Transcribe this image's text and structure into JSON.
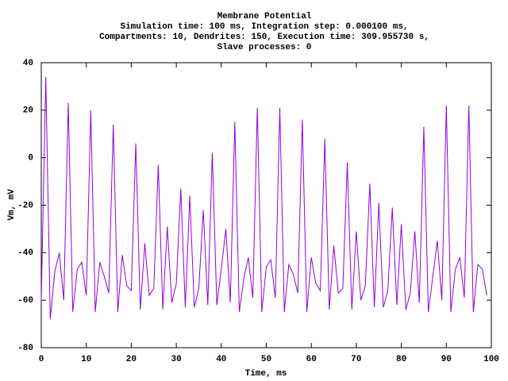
{
  "chart_data": {
    "type": "line",
    "title": "Membrane Potential",
    "subtitle": [
      "Simulation time: 100 ms, Integration step: 0.000100 ms,",
      "Compartments: 10, Dendrites: 150, Execution time: 309.955730 s,",
      "Slave processes: 0"
    ],
    "x_label": "Time, ms",
    "y_label": "Vm, mV",
    "xlim": [
      0,
      100
    ],
    "xticks": [
      0,
      10,
      20,
      30,
      40,
      50,
      60,
      70,
      80,
      90,
      100
    ],
    "ylim": [
      -80,
      40
    ],
    "yticks": [
      -80,
      -60,
      -40,
      -20,
      0,
      20,
      40
    ],
    "grid": false,
    "color": "#9400d3",
    "x": [
      0,
      1,
      2,
      3,
      4,
      5,
      6,
      7,
      8,
      9,
      10,
      11,
      12,
      13,
      14,
      15,
      16,
      17,
      18,
      19,
      20,
      21,
      22,
      23,
      24,
      25,
      26,
      27,
      28,
      29,
      30,
      31,
      32,
      33,
      34,
      35,
      36,
      37,
      38,
      39,
      40,
      41,
      42,
      43,
      44,
      45,
      46,
      47,
      48,
      49,
      50,
      51,
      52,
      53,
      54,
      55,
      56,
      57,
      58,
      59,
      60,
      61,
      62,
      63,
      64,
      65,
      66,
      67,
      68,
      69,
      70,
      71,
      72,
      73,
      74,
      75,
      76,
      77,
      78,
      79,
      80,
      81,
      82,
      83,
      84,
      85,
      86,
      87,
      88,
      89,
      90,
      91,
      92,
      93,
      94,
      95,
      96,
      97,
      98,
      99
    ],
    "values": [
      -60,
      34,
      -68,
      -48,
      -40,
      -60,
      23,
      -65,
      -47,
      -44,
      -58,
      20,
      -65,
      -44,
      -50,
      -57,
      14,
      -65,
      -41,
      -54,
      -56,
      6,
      -64,
      -36,
      -58,
      -55,
      -3,
      -64,
      -29,
      -61,
      -53,
      -13,
      -63,
      -16,
      -63,
      -55,
      -22,
      -62,
      2,
      -62,
      -47,
      -30,
      -61,
      15,
      -65,
      -51,
      -42,
      -59,
      21,
      -65,
      -46,
      -43,
      -59,
      21,
      -65,
      -45,
      -49,
      -57,
      16,
      -65,
      -42,
      -53,
      -56,
      8,
      -64,
      -37,
      -57,
      -55,
      -2,
      -64,
      -31,
      -60,
      -54,
      -11,
      -63,
      -19,
      -63,
      -56,
      -21,
      -62,
      -28,
      -64,
      -57,
      -31,
      -61,
      13,
      -65,
      -50,
      -35,
      -60,
      22,
      -65,
      -47,
      -42,
      -59,
      22,
      -65,
      -45,
      -47,
      -58
    ]
  }
}
